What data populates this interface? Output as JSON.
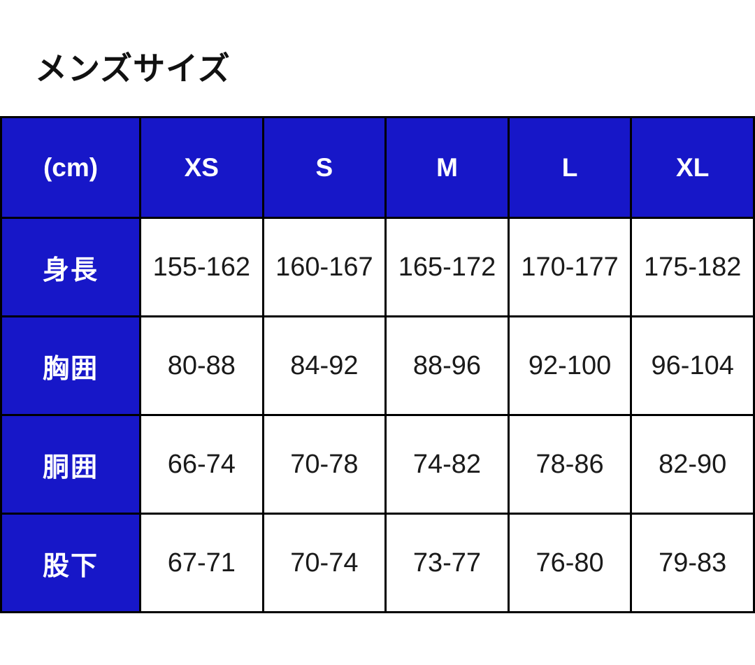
{
  "page": {
    "title": "メンズサイズ"
  },
  "colors": {
    "header_bg": "#1717C8",
    "header_text": "#FFFFFF",
    "body_text": "#1A1A1A",
    "border": "#000000",
    "page_bg": "#FFFFFF"
  },
  "chart_data": {
    "type": "table",
    "title": "メンズサイズ",
    "corner_label": "(cm)",
    "unit": "cm",
    "columns": [
      "XS",
      "S",
      "M",
      "L",
      "XL"
    ],
    "rows": [
      {
        "label": "身長",
        "values": [
          "155-162",
          "160-167",
          "165-172",
          "170-177",
          "175-182"
        ]
      },
      {
        "label": "胸囲",
        "values": [
          "80-88",
          "84-92",
          "88-96",
          "92-100",
          "96-104"
        ]
      },
      {
        "label": "胴囲",
        "values": [
          "66-74",
          "70-78",
          "74-82",
          "78-86",
          "82-90"
        ]
      },
      {
        "label": "股下",
        "values": [
          "67-71",
          "70-74",
          "73-77",
          "76-80",
          "79-83"
        ]
      }
    ]
  }
}
